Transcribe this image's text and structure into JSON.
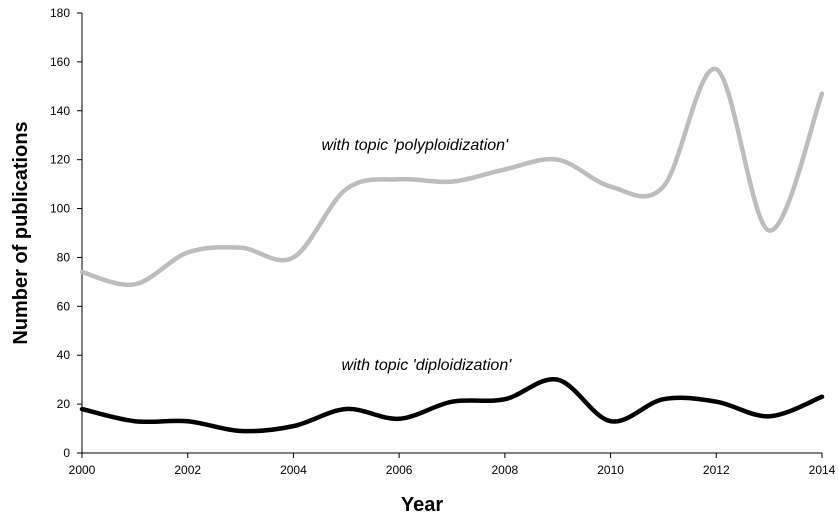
{
  "chart_data": {
    "type": "line",
    "title": "",
    "xlabel": "Year",
    "ylabel": "Number of publications",
    "xlim": [
      2000,
      2014
    ],
    "ylim": [
      0,
      180
    ],
    "x_ticks": [
      "2000",
      "2002",
      "2004",
      "2006",
      "2008",
      "2010",
      "2012",
      "2014"
    ],
    "y_ticks": [
      "0",
      "20",
      "40",
      "60",
      "80",
      "100",
      "120",
      "140",
      "160",
      "180"
    ],
    "grid": false,
    "legend": "none",
    "x": [
      2000,
      2001,
      2002,
      2003,
      2004,
      2005,
      2006,
      2007,
      2008,
      2009,
      2010,
      2011,
      2012,
      2013,
      2014
    ],
    "series": [
      {
        "annotation": "with topic 'polyploidization'",
        "color": "#bdbdbd",
        "values": [
          74,
          69,
          82,
          84,
          80,
          108,
          112,
          111,
          116,
          120,
          109,
          109,
          157,
          91,
          147
        ]
      },
      {
        "annotation": "with topic 'diploidization'",
        "color": "#000000",
        "values": [
          18,
          13,
          13,
          9,
          11,
          18,
          14,
          21,
          22,
          30,
          13,
          22,
          21,
          15,
          23
        ]
      }
    ]
  }
}
